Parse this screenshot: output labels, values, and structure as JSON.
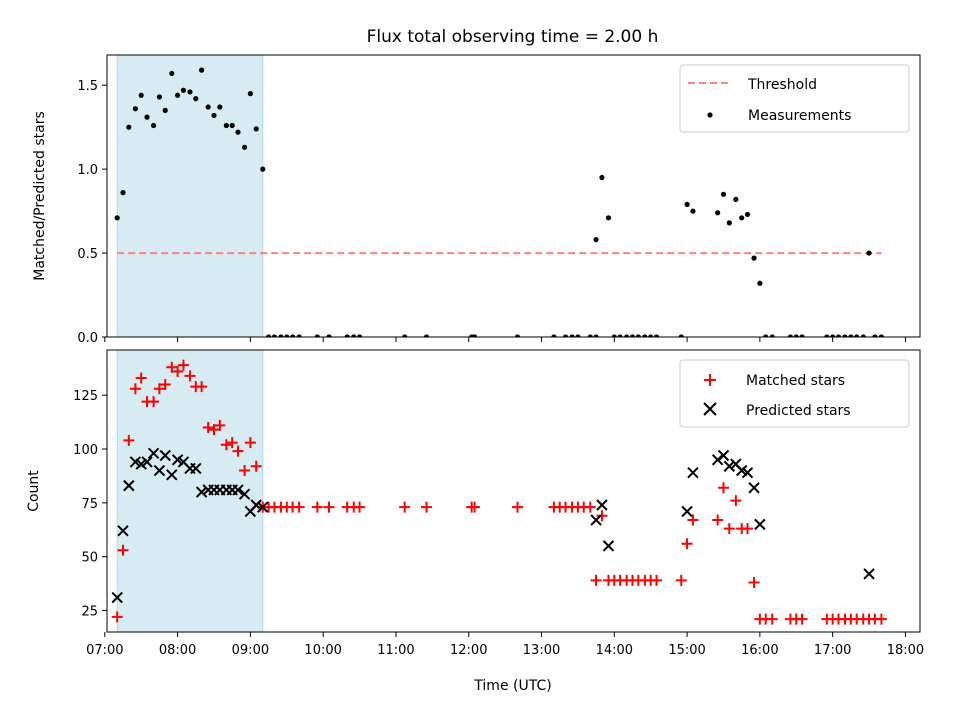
{
  "chart_data": [
    {
      "type": "scatter",
      "title": "Flux total observing time = 2.00 h",
      "xlabel": "",
      "ylabel": "Matched/Predicted stars",
      "xlim": [
        7.03,
        18.2
      ],
      "ylim": [
        0.0,
        1.68
      ],
      "yticks": [
        0.0,
        0.5,
        1.0,
        1.5
      ],
      "ytick_labels": [
        "0.0",
        "0.5",
        "1.0",
        "1.5"
      ],
      "xticks": [
        7,
        8,
        9,
        10,
        11,
        12,
        13,
        14,
        15,
        16,
        17,
        18
      ],
      "xtick_labels": [],
      "shaded_region": {
        "x": [
          7.17,
          9.17
        ],
        "color": "#add8e6"
      },
      "threshold": {
        "name": "Threshold",
        "y": 0.5,
        "x": [
          7.17,
          17.67
        ],
        "color": "#ff8080"
      },
      "legend_location": "upper right",
      "series": [
        {
          "name": "Measurements",
          "color": "#000000",
          "marker": "dot",
          "x": [
            7.17,
            7.25,
            7.33,
            7.42,
            7.5,
            7.58,
            7.67,
            7.75,
            7.83,
            7.92,
            8.0,
            8.08,
            8.17,
            8.25,
            8.33,
            8.42,
            8.5,
            8.58,
            8.67,
            8.75,
            8.83,
            8.92,
            9.0,
            9.08,
            9.17,
            9.25,
            9.33,
            9.42,
            9.5,
            9.58,
            9.67,
            9.92,
            10.08,
            10.33,
            10.42,
            10.5,
            11.12,
            11.42,
            12.04,
            12.08,
            12.67,
            13.17,
            13.33,
            13.42,
            13.5,
            13.67,
            13.75,
            13.75,
            13.83,
            13.92,
            14.0,
            14.08,
            14.17,
            14.25,
            14.33,
            14.42,
            14.5,
            14.58,
            14.92,
            15.0,
            15.08,
            15.42,
            15.5,
            15.58,
            15.67,
            15.75,
            15.83,
            15.92,
            16.0,
            16.08,
            16.17,
            16.42,
            16.5,
            16.58,
            16.92,
            17.0,
            17.08,
            17.17,
            17.25,
            17.33,
            17.42,
            17.5,
            17.58,
            17.67
          ],
          "y": [
            0.71,
            0.86,
            1.25,
            1.36,
            1.44,
            1.31,
            1.26,
            1.43,
            1.35,
            1.57,
            1.44,
            1.47,
            1.46,
            1.42,
            1.59,
            1.37,
            1.32,
            1.37,
            1.26,
            1.26,
            1.22,
            1.13,
            1.45,
            1.24,
            1.0,
            0.0,
            0.0,
            0.0,
            0.0,
            0.0,
            0.0,
            0.0,
            0.0,
            0.0,
            0.0,
            0.0,
            0.0,
            0.0,
            0.0,
            0.0,
            0.0,
            0.0,
            0.0,
            0.0,
            0.0,
            0.0,
            0.0,
            0.58,
            0.95,
            0.71,
            0.0,
            0.0,
            0.0,
            0.0,
            0.0,
            0.0,
            0.0,
            0.0,
            0.0,
            0.79,
            0.75,
            0.74,
            0.85,
            0.68,
            0.82,
            0.71,
            0.73,
            0.47,
            0.32,
            0.0,
            0.0,
            0.0,
            0.0,
            0.0,
            0.0,
            0.0,
            0.0,
            0.0,
            0.0,
            0.0,
            0.0,
            0.5,
            0.0,
            0.0
          ]
        }
      ]
    },
    {
      "type": "scatter",
      "title": "",
      "xlabel": "Time (UTC)",
      "ylabel": "Count",
      "xlim": [
        7.03,
        18.2
      ],
      "ylim": [
        15,
        146
      ],
      "yticks": [
        25,
        50,
        75,
        100,
        125
      ],
      "ytick_labels": [
        "25",
        "50",
        "75",
        "100",
        "125"
      ],
      "xticks": [
        7,
        8,
        9,
        10,
        11,
        12,
        13,
        14,
        15,
        16,
        17,
        18
      ],
      "xtick_labels": [
        "07:00",
        "08:00",
        "09:00",
        "10:00",
        "11:00",
        "12:00",
        "13:00",
        "14:00",
        "15:00",
        "16:00",
        "17:00",
        "18:00"
      ],
      "shaded_region": {
        "x": [
          7.17,
          9.17
        ],
        "color": "#add8e6"
      },
      "legend_location": "upper right",
      "series": [
        {
          "name": "Matched stars",
          "color": "#ff0000",
          "marker": "plus",
          "x": [
            7.17,
            7.25,
            7.33,
            7.42,
            7.5,
            7.58,
            7.67,
            7.75,
            7.83,
            7.92,
            8.0,
            8.08,
            8.17,
            8.25,
            8.33,
            8.42,
            8.5,
            8.58,
            8.67,
            8.75,
            8.83,
            8.92,
            9.0,
            9.08,
            9.17,
            9.25,
            9.33,
            9.42,
            9.5,
            9.58,
            9.67,
            9.92,
            10.08,
            10.33,
            10.42,
            10.5,
            11.12,
            11.42,
            12.04,
            12.08,
            12.67,
            13.17,
            13.25,
            13.33,
            13.42,
            13.5,
            13.58,
            13.67,
            13.75,
            13.83,
            13.92,
            14.0,
            14.08,
            14.17,
            14.25,
            14.33,
            14.42,
            14.5,
            14.58,
            14.92,
            15.0,
            15.08,
            15.42,
            15.5,
            15.58,
            15.67,
            15.75,
            15.83,
            15.92,
            16.0,
            16.08,
            16.17,
            16.42,
            16.5,
            16.58,
            16.92,
            17.0,
            17.08,
            17.17,
            17.25,
            17.33,
            17.42,
            17.5,
            17.58,
            17.67
          ],
          "y": [
            22,
            53,
            104,
            128,
            133,
            122,
            122,
            128,
            130,
            138,
            136,
            139,
            134,
            129,
            129,
            110,
            109,
            111,
            102,
            103,
            99,
            90,
            103,
            92,
            73,
            73,
            73,
            73,
            73,
            73,
            73,
            73,
            73,
            73,
            73,
            73,
            73,
            73,
            73,
            73,
            73,
            73,
            73,
            73,
            73,
            73,
            73,
            73,
            39,
            69,
            39,
            39,
            39,
            39,
            39,
            39,
            39,
            39,
            39,
            39,
            56,
            67,
            67,
            82,
            63,
            76,
            63,
            63,
            38,
            21,
            21,
            21,
            21,
            21,
            21,
            21,
            21,
            21,
            21,
            21,
            21,
            21,
            21,
            21,
            21
          ]
        },
        {
          "name": "Predicted stars",
          "color": "#000000",
          "marker": "x",
          "x": [
            7.17,
            7.25,
            7.33,
            7.42,
            7.5,
            7.58,
            7.67,
            7.75,
            7.83,
            7.92,
            8.0,
            8.08,
            8.17,
            8.25,
            8.33,
            8.42,
            8.5,
            8.58,
            8.67,
            8.75,
            8.83,
            8.92,
            9.0,
            9.08,
            9.17,
            13.75,
            13.83,
            13.92,
            15.0,
            15.08,
            15.42,
            15.5,
            15.58,
            15.67,
            15.75,
            15.83,
            15.92,
            16.0,
            17.5
          ],
          "y": [
            31,
            62,
            83,
            94,
            93,
            94,
            98,
            90,
            97,
            88,
            95,
            94,
            91,
            91,
            80,
            81,
            81,
            81,
            81,
            81,
            81,
            79,
            71,
            74,
            73,
            67,
            74,
            55,
            71,
            89,
            95,
            97,
            92,
            93,
            90,
            89,
            82,
            65,
            42
          ]
        }
      ]
    }
  ]
}
